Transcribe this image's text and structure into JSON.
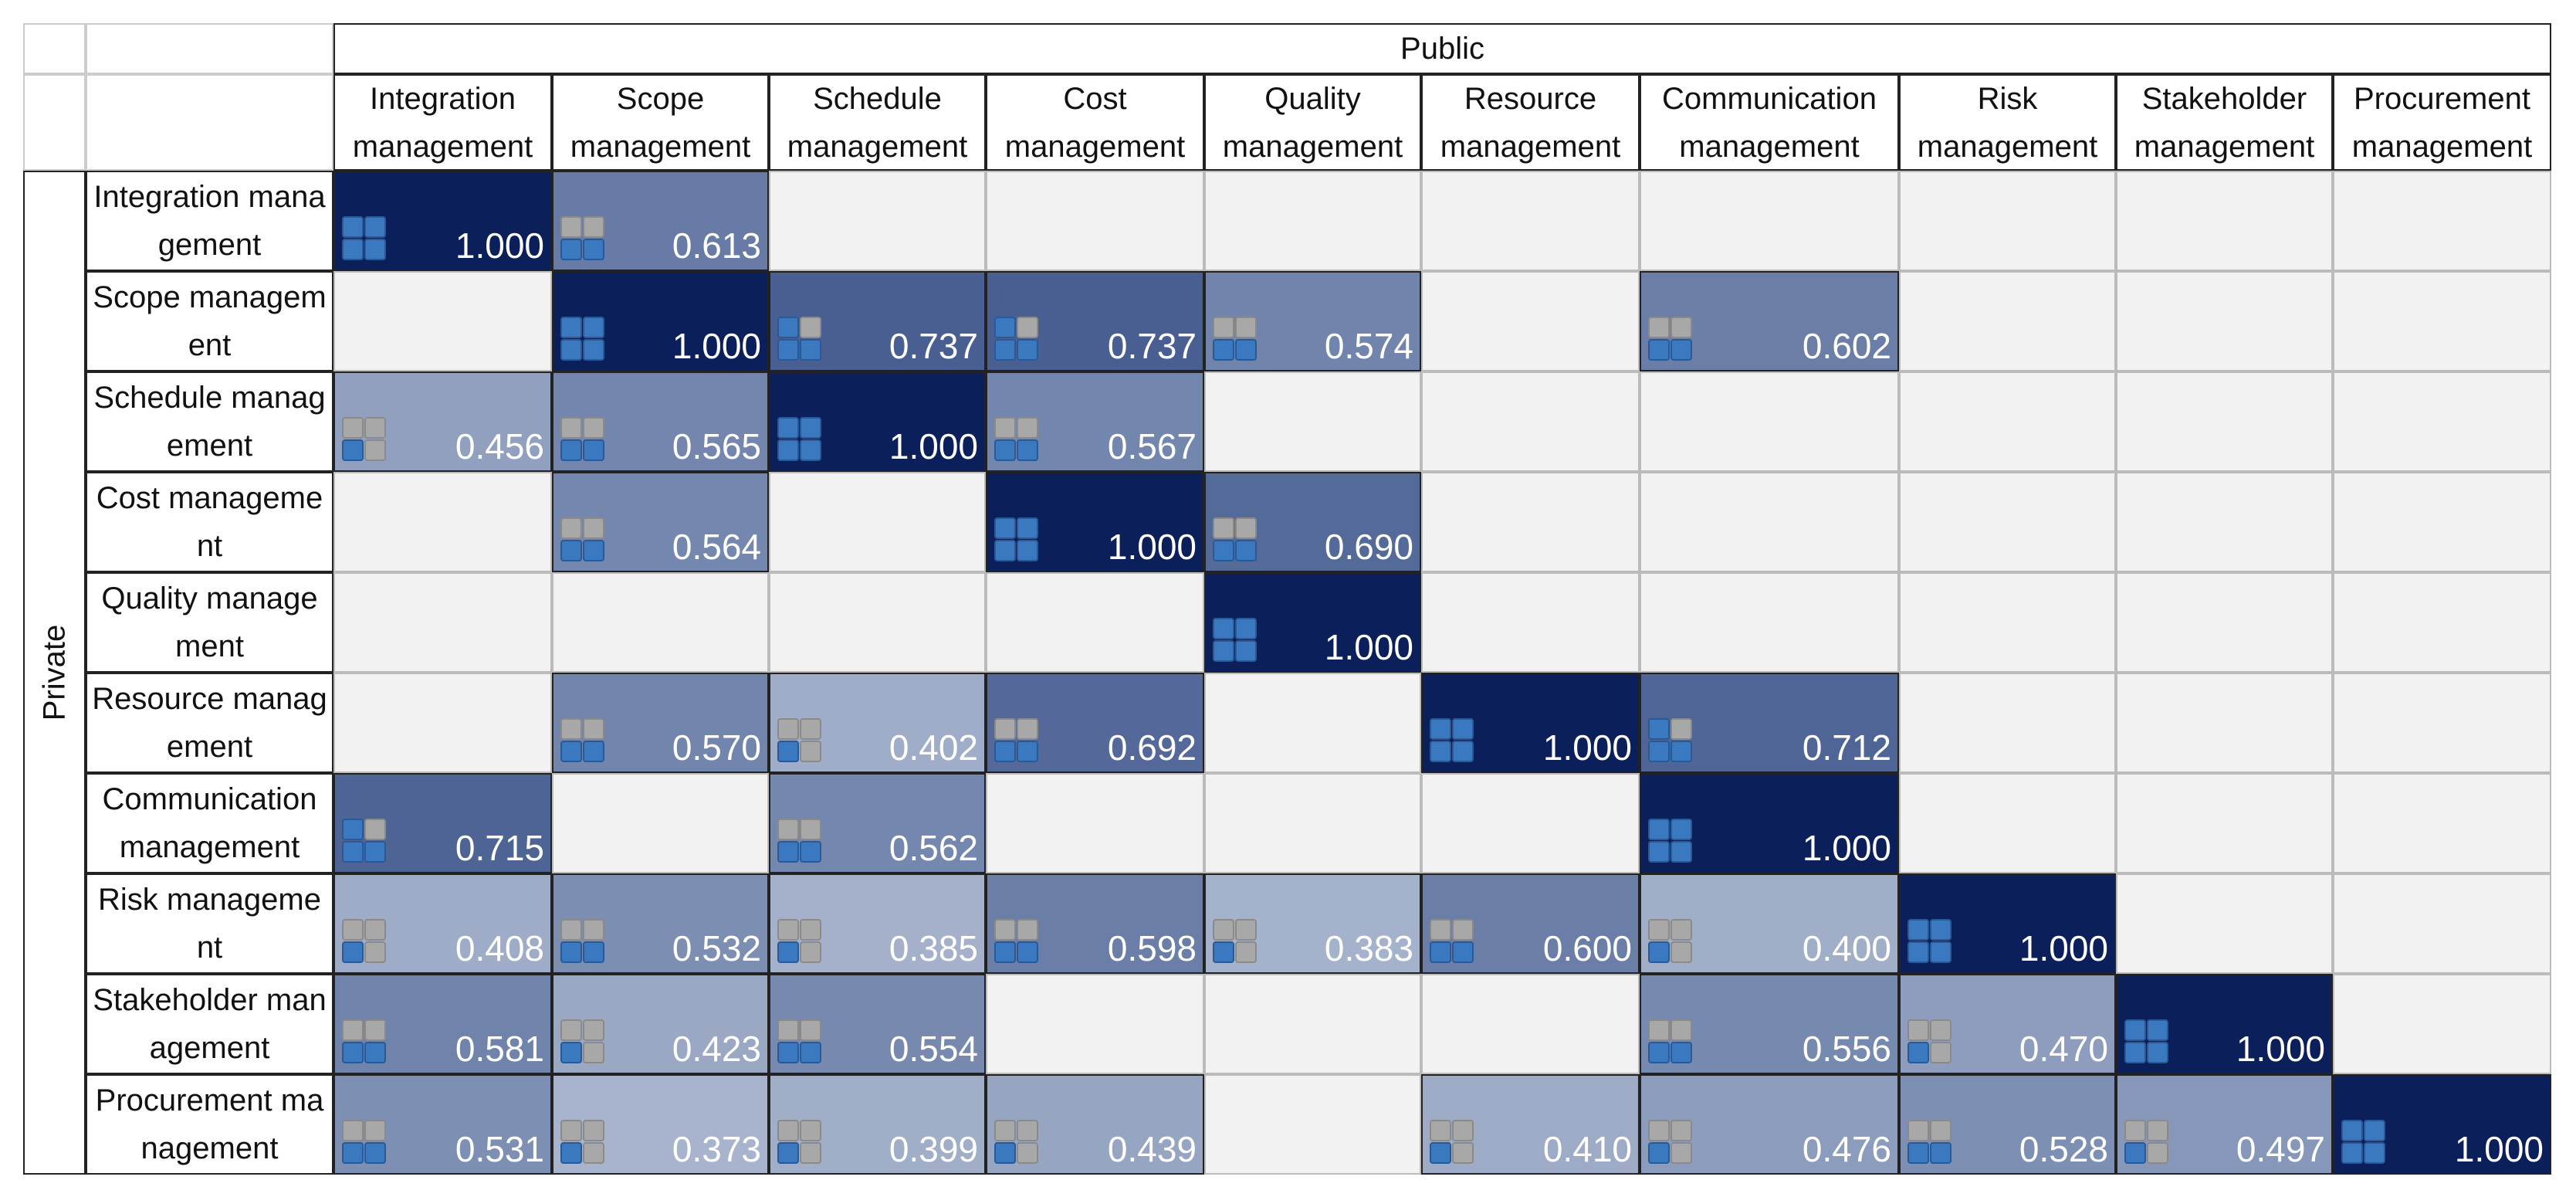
{
  "header": {
    "title": "Public",
    "row_group": "Private"
  },
  "columns": [
    "Integration management",
    "Scope management",
    "Schedule management",
    "Cost management",
    "Quality management",
    "Resource management",
    "Communication management",
    "Risk management",
    "Stakeholder management",
    "Procurement management"
  ],
  "rows": [
    {
      "label": "Integration management",
      "cells": [
        "1.000",
        "0.613",
        null,
        null,
        null,
        null,
        null,
        null,
        null,
        null
      ]
    },
    {
      "label": "Scope management",
      "cells": [
        null,
        "1.000",
        "0.737",
        "0.737",
        "0.574",
        null,
        "0.602",
        null,
        null,
        null
      ]
    },
    {
      "label": "Schedule management",
      "cells": [
        "0.456",
        "0.565",
        "1.000",
        "0.567",
        null,
        null,
        null,
        null,
        null,
        null
      ]
    },
    {
      "label": "Cost management",
      "cells": [
        null,
        "0.564",
        null,
        "1.000",
        "0.690",
        null,
        null,
        null,
        null,
        null
      ]
    },
    {
      "label": "Quality management",
      "cells": [
        null,
        null,
        null,
        null,
        "1.000",
        null,
        null,
        null,
        null,
        null
      ]
    },
    {
      "label": "Resource management",
      "cells": [
        null,
        "0.570",
        "0.402",
        "0.692",
        null,
        "1.000",
        "0.712",
        null,
        null,
        null
      ]
    },
    {
      "label": "Communication management",
      "cells": [
        "0.715",
        null,
        "0.562",
        null,
        null,
        null,
        "1.000",
        null,
        null,
        null
      ]
    },
    {
      "label": "Risk management",
      "cells": [
        "0.408",
        "0.532",
        "0.385",
        "0.598",
        "0.383",
        "0.600",
        "0.400",
        "1.000",
        null,
        null
      ]
    },
    {
      "label": "Stakeholder management",
      "cells": [
        "0.581",
        "0.423",
        "0.554",
        null,
        null,
        null,
        "0.556",
        "0.470",
        "1.000",
        null
      ]
    },
    {
      "label": "Procurement management",
      "cells": [
        "0.531",
        "0.373",
        "0.399",
        "0.439",
        null,
        "0.410",
        "0.476",
        "0.528",
        "0.497",
        "1.000"
      ]
    }
  ]
}
